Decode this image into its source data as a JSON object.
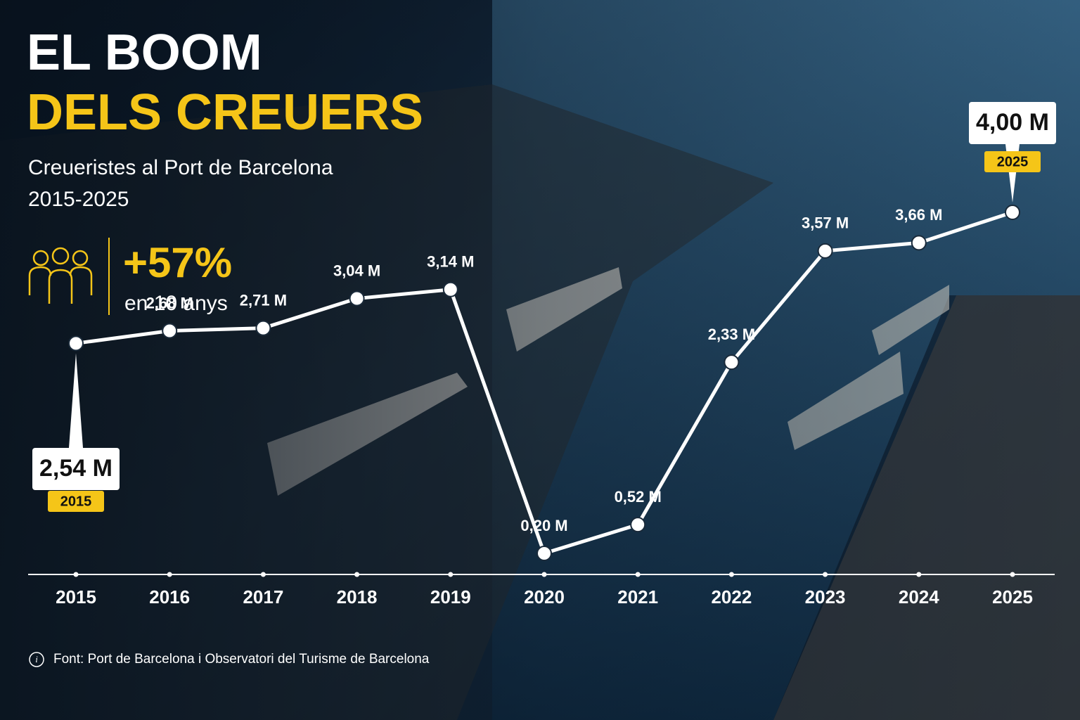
{
  "chart_data": {
    "type": "line",
    "title": [
      "EL BOOM",
      "DELS CREUERS"
    ],
    "subtitle": [
      "Creueristes al Port de Barcelona",
      "2015-2025"
    ],
    "highlight": {
      "label": "+57%",
      "caption": "en 10 anys"
    },
    "categories": [
      "2015",
      "2016",
      "2017",
      "2018",
      "2019",
      "2020",
      "2021",
      "2022",
      "2023",
      "2024",
      "2025"
    ],
    "values": [
      2.54,
      2.68,
      2.71,
      3.04,
      3.14,
      0.2,
      0.52,
      2.33,
      3.57,
      3.66,
      4.0
    ],
    "value_labels": [
      "2,54 M",
      "2,68 M",
      "2,71 M",
      "3,04 M",
      "3,14 M",
      "0,20 M",
      "0,52 M",
      "2,33 M",
      "3,57 M",
      "3,66 M",
      "4,00 M"
    ],
    "color": "#ffffff",
    "callout_color": "#f5c518",
    "source": "Font: Port de Barcelona i Observatori del Turisme de Barcelona"
  }
}
